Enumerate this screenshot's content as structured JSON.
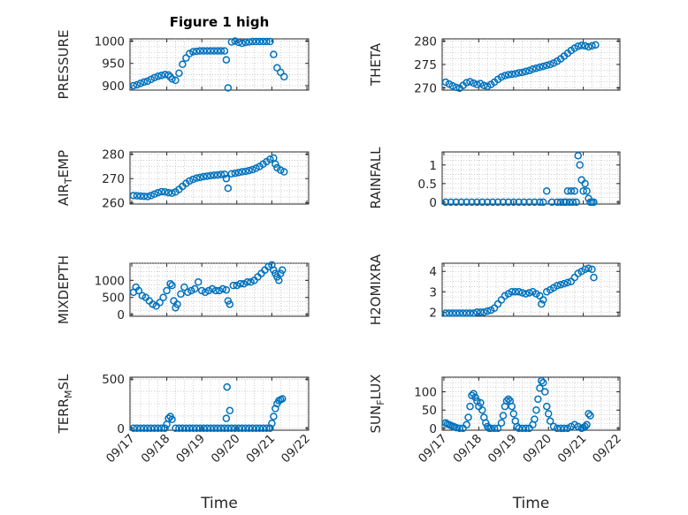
{
  "figure": {
    "title": "Figure 1 high"
  },
  "colors": {
    "marker": "#0072BD",
    "axis": "#262626",
    "grid": "#b0b0b0"
  },
  "chart_data": [
    {
      "type": "scatter",
      "id": "pressure",
      "ylabel": "PRESSURE",
      "ylabel_sub": [],
      "title": "Figure 1 high",
      "yticks": [
        900,
        950,
        1000
      ],
      "ylim": [
        890,
        1005
      ],
      "grid": true,
      "show_x_ticklabels": false,
      "xlabel": "",
      "series": [
        {
          "x": [
            17.05,
            17.15,
            17.25,
            17.35,
            17.45,
            17.55,
            17.65,
            17.75,
            17.85,
            17.95,
            18.05,
            18.1,
            18.15,
            18.25,
            18.35,
            18.45,
            18.55,
            18.65,
            18.75,
            18.85,
            18.95,
            19.05,
            19.15,
            19.25,
            19.35,
            19.45,
            19.55,
            19.65,
            19.7,
            19.75,
            19.85,
            19.95,
            20.05,
            20.15,
            20.25,
            20.35,
            20.45,
            20.55,
            20.65,
            20.75,
            20.85,
            20.95,
            21.05,
            21.15,
            21.25,
            21.35
          ],
          "y": [
            900,
            902,
            905,
            908,
            910,
            914,
            918,
            921,
            923,
            925,
            924,
            920,
            915,
            912,
            928,
            948,
            962,
            972,
            976,
            977,
            978,
            978,
            978,
            978,
            978,
            978,
            978,
            978,
            958,
            895,
            998,
            1000,
            997,
            995,
            997,
            998,
            999,
            999,
            999,
            999,
            999,
            999,
            970,
            940,
            930,
            920
          ]
        }
      ]
    },
    {
      "type": "scatter",
      "id": "theta",
      "ylabel": "THETA",
      "ylabel_sub": [],
      "yticks": [
        270,
        275,
        280
      ],
      "ylim": [
        269.5,
        280.5
      ],
      "grid": true,
      "show_x_ticklabels": false,
      "xlabel": "",
      "series": [
        {
          "x": [
            17.05,
            17.15,
            17.25,
            17.35,
            17.45,
            17.55,
            17.65,
            17.75,
            17.85,
            17.95,
            18.05,
            18.15,
            18.25,
            18.35,
            18.45,
            18.55,
            18.65,
            18.75,
            18.85,
            18.95,
            19.05,
            19.15,
            19.25,
            19.35,
            19.45,
            19.55,
            19.65,
            19.75,
            19.85,
            19.95,
            20.05,
            20.15,
            20.25,
            20.35,
            20.45,
            20.55,
            20.65,
            20.75,
            20.85,
            20.95,
            21.05,
            21.15,
            21.25,
            21.35
          ],
          "y": [
            271.2,
            270.8,
            270.4,
            270.1,
            269.9,
            270.5,
            271.1,
            271.3,
            271.0,
            270.7,
            270.9,
            270.5,
            270.3,
            270.7,
            271.2,
            271.8,
            272.3,
            272.6,
            272.8,
            272.9,
            273.0,
            273.2,
            273.3,
            273.5,
            273.7,
            274.0,
            274.2,
            274.4,
            274.6,
            274.8,
            275.0,
            275.3,
            275.7,
            276.2,
            276.8,
            277.4,
            278.0,
            278.5,
            278.9,
            279.1,
            279.0,
            278.8,
            279.0,
            279.2
          ]
        }
      ]
    },
    {
      "type": "scatter",
      "id": "air_temp",
      "ylabel": "AIR",
      "ylabel_sub": [
        "T",
        "EMP"
      ],
      "yticks": [
        260,
        270,
        280
      ],
      "ylim": [
        259.5,
        281
      ],
      "grid": true,
      "show_x_ticklabels": false,
      "xlabel": "",
      "series": [
        {
          "x": [
            17.05,
            17.15,
            17.25,
            17.35,
            17.45,
            17.55,
            17.65,
            17.75,
            17.85,
            17.95,
            18.05,
            18.15,
            18.25,
            18.35,
            18.45,
            18.55,
            18.65,
            18.75,
            18.85,
            18.95,
            19.05,
            19.15,
            19.25,
            19.35,
            19.45,
            19.55,
            19.65,
            19.7,
            19.75,
            19.85,
            19.95,
            20.05,
            20.15,
            20.25,
            20.35,
            20.45,
            20.55,
            20.65,
            20.75,
            20.85,
            20.95,
            21.05,
            21.1,
            21.15,
            21.25,
            21.35
          ],
          "y": [
            263.0,
            262.9,
            262.8,
            262.7,
            262.6,
            263.0,
            263.6,
            264.2,
            264.6,
            264.5,
            264.2,
            264.0,
            264.5,
            265.5,
            266.8,
            268.0,
            269.0,
            269.7,
            270.2,
            270.5,
            270.8,
            271.0,
            271.2,
            271.4,
            271.5,
            271.7,
            271.8,
            270.0,
            266.0,
            272.0,
            272.2,
            272.5,
            272.8,
            273.0,
            273.3,
            273.7,
            274.3,
            275.0,
            276.0,
            277.0,
            278.0,
            278.5,
            276.0,
            274.5,
            273.5,
            272.8
          ]
        }
      ]
    },
    {
      "type": "scatter",
      "id": "rainfall",
      "ylabel": "RAINFALL",
      "ylabel_sub": [],
      "yticks": [
        0,
        0.5,
        1
      ],
      "ylim": [
        -0.05,
        1.35
      ],
      "grid": true,
      "show_x_ticklabels": false,
      "xlabel": "",
      "series": [
        {
          "x": [
            17.05,
            17.2,
            17.35,
            17.5,
            17.65,
            17.8,
            17.95,
            18.1,
            18.25,
            18.4,
            18.55,
            18.7,
            18.85,
            19.0,
            19.15,
            19.3,
            19.45,
            19.6,
            19.75,
            19.85,
            19.95,
            20.1,
            20.25,
            20.35,
            20.45,
            20.5,
            20.55,
            20.6,
            20.65,
            20.7,
            20.75,
            20.8,
            20.85,
            20.9,
            20.95,
            21.0,
            21.05,
            21.1,
            21.15,
            21.2,
            21.25,
            21.3
          ],
          "y": [
            0,
            0,
            0,
            0,
            0,
            0,
            0,
            0,
            0,
            0,
            0,
            0,
            0,
            0,
            0,
            0,
            0,
            0,
            0,
            0,
            0.3,
            0,
            0,
            0,
            0,
            0,
            0.3,
            0,
            0.3,
            0,
            0.3,
            0,
            1.25,
            1.0,
            0.6,
            0.3,
            0.5,
            0.3,
            0.1,
            0,
            0,
            0
          ]
        }
      ]
    },
    {
      "type": "scatter",
      "id": "mixdepth",
      "ylabel": "MIXDEPTH",
      "ylabel_sub": [],
      "yticks": [
        0,
        500,
        1000
      ],
      "ylim": [
        -50,
        1500
      ],
      "grid": true,
      "show_x_ticklabels": false,
      "xlabel": "",
      "series": [
        {
          "x": [
            17.05,
            17.12,
            17.2,
            17.3,
            17.4,
            17.5,
            17.6,
            17.7,
            17.8,
            17.9,
            18.0,
            18.1,
            18.15,
            18.2,
            18.25,
            18.3,
            18.4,
            18.5,
            18.6,
            18.7,
            18.8,
            18.9,
            19.0,
            19.1,
            19.2,
            19.3,
            19.4,
            19.5,
            19.6,
            19.7,
            19.75,
            19.8,
            19.9,
            20.0,
            20.1,
            20.2,
            20.3,
            20.4,
            20.5,
            20.6,
            20.7,
            20.8,
            20.9,
            21.0,
            21.05,
            21.1,
            21.15,
            21.2,
            21.25,
            21.3
          ],
          "y": [
            650,
            800,
            700,
            550,
            500,
            400,
            300,
            250,
            350,
            500,
            700,
            900,
            850,
            400,
            200,
            300,
            600,
            800,
            650,
            700,
            750,
            950,
            700,
            650,
            700,
            750,
            700,
            700,
            750,
            720,
            400,
            300,
            850,
            850,
            900,
            900,
            950,
            950,
            1000,
            1100,
            1200,
            1300,
            1400,
            1450,
            1300,
            1200,
            1100,
            1000,
            1200,
            1300
          ]
        }
      ]
    },
    {
      "type": "scatter",
      "id": "h2omixra",
      "ylabel": "H2OMIXRA",
      "ylabel_sub": [],
      "yticks": [
        2,
        3,
        4
      ],
      "ylim": [
        1.8,
        4.4
      ],
      "grid": true,
      "show_x_ticklabels": false,
      "xlabel": "",
      "series": [
        {
          "x": [
            17.05,
            17.15,
            17.25,
            17.35,
            17.45,
            17.55,
            17.65,
            17.75,
            17.85,
            17.95,
            18.05,
            18.15,
            18.25,
            18.35,
            18.45,
            18.55,
            18.65,
            18.75,
            18.85,
            18.95,
            19.05,
            19.15,
            19.25,
            19.35,
            19.45,
            19.55,
            19.65,
            19.75,
            19.8,
            19.85,
            19.95,
            20.05,
            20.15,
            20.25,
            20.35,
            20.45,
            20.55,
            20.65,
            20.75,
            20.85,
            20.95,
            21.05,
            21.15,
            21.25,
            21.3
          ],
          "y": [
            1.95,
            1.95,
            1.95,
            1.95,
            1.95,
            1.95,
            1.95,
            1.95,
            1.95,
            2.0,
            2.0,
            2.0,
            2.05,
            2.1,
            2.2,
            2.4,
            2.6,
            2.8,
            2.9,
            3.0,
            3.0,
            3.0,
            2.95,
            2.9,
            2.95,
            3.0,
            2.9,
            2.8,
            2.4,
            2.6,
            3.0,
            3.1,
            3.2,
            3.3,
            3.35,
            3.4,
            3.45,
            3.5,
            3.7,
            3.9,
            4.0,
            4.1,
            4.15,
            4.1,
            3.7
          ]
        }
      ]
    },
    {
      "type": "scatter",
      "id": "terr_msl",
      "ylabel": "TERR",
      "ylabel_sub": [
        "M",
        "SL"
      ],
      "yticks": [
        0,
        500
      ],
      "ylim": [
        -20,
        520
      ],
      "grid": true,
      "show_x_ticklabels": true,
      "xlabel": "Time",
      "series": [
        {
          "x": [
            17.05,
            17.15,
            17.25,
            17.35,
            17.45,
            17.55,
            17.65,
            17.75,
            17.85,
            17.95,
            18.0,
            18.05,
            18.1,
            18.15,
            18.25,
            18.35,
            18.45,
            18.55,
            18.65,
            18.75,
            18.85,
            18.95,
            19.05,
            19.15,
            19.25,
            19.35,
            19.45,
            19.55,
            19.65,
            19.7,
            19.72,
            19.75,
            19.8,
            19.85,
            19.95,
            20.05,
            20.15,
            20.25,
            20.35,
            20.45,
            20.55,
            20.65,
            20.75,
            20.85,
            20.95,
            21.0,
            21.05,
            21.1,
            21.15,
            21.2,
            21.25,
            21.3
          ],
          "y": [
            0,
            0,
            0,
            0,
            0,
            0,
            0,
            0,
            0,
            0,
            40,
            100,
            120,
            90,
            0,
            0,
            0,
            0,
            0,
            0,
            0,
            0,
            0,
            0,
            0,
            0,
            0,
            0,
            0,
            100,
            420,
            0,
            180,
            0,
            0,
            0,
            0,
            0,
            0,
            0,
            0,
            0,
            0,
            0,
            0,
            50,
            120,
            200,
            250,
            280,
            290,
            300
          ]
        }
      ]
    },
    {
      "type": "scatter",
      "id": "sun_flux",
      "ylabel": "SUN",
      "ylabel_sub": [
        "F",
        "LUX"
      ],
      "yticks": [
        0,
        50,
        100
      ],
      "ylim": [
        -5,
        140
      ],
      "grid": true,
      "show_x_ticklabels": true,
      "xlabel": "Time",
      "series": [
        {
          "x": [
            17.05,
            17.1,
            17.15,
            17.2,
            17.25,
            17.3,
            17.35,
            17.45,
            17.55,
            17.65,
            17.7,
            17.75,
            17.8,
            17.85,
            17.9,
            17.95,
            18.0,
            18.05,
            18.1,
            18.15,
            18.2,
            18.25,
            18.3,
            18.35,
            18.45,
            18.55,
            18.65,
            18.7,
            18.75,
            18.8,
            18.85,
            18.9,
            18.95,
            19.0,
            19.05,
            19.1,
            19.15,
            19.25,
            19.35,
            19.45,
            19.55,
            19.6,
            19.65,
            19.7,
            19.75,
            19.8,
            19.85,
            19.9,
            19.95,
            20.0,
            20.05,
            20.15,
            20.25,
            20.35,
            20.45,
            20.55,
            20.65,
            20.75,
            20.85,
            20.95,
            21.0,
            21.05,
            21.1,
            21.15,
            21.2
          ],
          "y": [
            15,
            12,
            10,
            8,
            6,
            4,
            2,
            0,
            0,
            10,
            30,
            60,
            90,
            95,
            85,
            75,
            60,
            70,
            50,
            30,
            15,
            5,
            0,
            0,
            0,
            0,
            15,
            35,
            60,
            75,
            80,
            75,
            60,
            40,
            20,
            5,
            0,
            0,
            0,
            0,
            10,
            25,
            50,
            80,
            110,
            130,
            125,
            100,
            60,
            40,
            20,
            5,
            0,
            0,
            0,
            0,
            5,
            10,
            5,
            0,
            2,
            5,
            10,
            40,
            35
          ]
        }
      ]
    }
  ],
  "x_axis": {
    "xlim": [
      16.95,
      22.05
    ],
    "ticks": [
      17,
      18,
      19,
      20,
      21,
      22
    ],
    "ticklabels": [
      "09/17",
      "09/18",
      "09/19",
      "09/20",
      "09/21",
      "09/22"
    ]
  }
}
